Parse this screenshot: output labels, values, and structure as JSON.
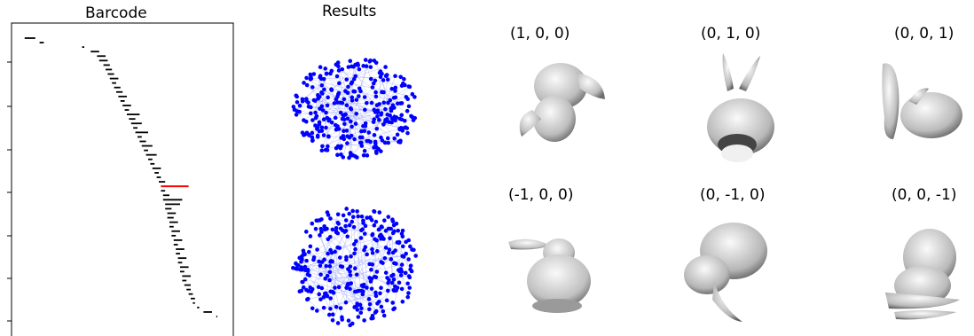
{
  "barcode": {
    "title": "Barcode",
    "bars": [
      {
        "start": 0.02,
        "end": 0.07
      },
      {
        "start": 0.09,
        "end": 0.11
      },
      {
        "start": 0.29,
        "end": 0.3
      },
      {
        "start": 0.33,
        "end": 0.37
      },
      {
        "start": 0.36,
        "end": 0.4
      },
      {
        "start": 0.37,
        "end": 0.41
      },
      {
        "start": 0.39,
        "end": 0.42
      },
      {
        "start": 0.4,
        "end": 0.43
      },
      {
        "start": 0.41,
        "end": 0.44
      },
      {
        "start": 0.42,
        "end": 0.46
      },
      {
        "start": 0.43,
        "end": 0.45
      },
      {
        "start": 0.44,
        "end": 0.47
      },
      {
        "start": 0.45,
        "end": 0.48
      },
      {
        "start": 0.46,
        "end": 0.5
      },
      {
        "start": 0.47,
        "end": 0.49
      },
      {
        "start": 0.48,
        "end": 0.52
      },
      {
        "start": 0.49,
        "end": 0.51
      },
      {
        "start": 0.5,
        "end": 0.56
      },
      {
        "start": 0.51,
        "end": 0.54
      },
      {
        "start": 0.52,
        "end": 0.57
      },
      {
        "start": 0.53,
        "end": 0.55
      },
      {
        "start": 0.54,
        "end": 0.6
      },
      {
        "start": 0.55,
        "end": 0.57
      },
      {
        "start": 0.56,
        "end": 0.59
      },
      {
        "start": 0.57,
        "end": 0.62
      },
      {
        "start": 0.58,
        "end": 0.6
      },
      {
        "start": 0.59,
        "end": 0.64
      },
      {
        "start": 0.6,
        "end": 0.62
      },
      {
        "start": 0.61,
        "end": 0.63
      },
      {
        "start": 0.62,
        "end": 0.66
      },
      {
        "start": 0.63,
        "end": 0.65
      },
      {
        "start": 0.64,
        "end": 0.66
      },
      {
        "start": 0.65,
        "end": 0.68
      },
      {
        "start": 0.66,
        "end": 0.79,
        "highlight": true
      },
      {
        "start": 0.66,
        "end": 0.68
      },
      {
        "start": 0.67,
        "end": 0.7
      },
      {
        "start": 0.67,
        "end": 0.76
      },
      {
        "start": 0.68,
        "end": 0.75
      },
      {
        "start": 0.68,
        "end": 0.71
      },
      {
        "start": 0.69,
        "end": 0.73
      },
      {
        "start": 0.69,
        "end": 0.72
      },
      {
        "start": 0.7,
        "end": 0.74
      },
      {
        "start": 0.7,
        "end": 0.72
      },
      {
        "start": 0.71,
        "end": 0.75
      },
      {
        "start": 0.71,
        "end": 0.73
      },
      {
        "start": 0.72,
        "end": 0.76
      },
      {
        "start": 0.72,
        "end": 0.74
      },
      {
        "start": 0.73,
        "end": 0.77
      },
      {
        "start": 0.73,
        "end": 0.75
      },
      {
        "start": 0.74,
        "end": 0.78
      },
      {
        "start": 0.74,
        "end": 0.76
      },
      {
        "start": 0.75,
        "end": 0.79
      },
      {
        "start": 0.75,
        "end": 0.77
      },
      {
        "start": 0.76,
        "end": 0.8
      },
      {
        "start": 0.76,
        "end": 0.78
      },
      {
        "start": 0.77,
        "end": 0.8
      },
      {
        "start": 0.78,
        "end": 0.8
      },
      {
        "start": 0.79,
        "end": 0.81
      },
      {
        "start": 0.8,
        "end": 0.82
      },
      {
        "start": 0.81,
        "end": 0.82
      },
      {
        "start": 0.83,
        "end": 0.84
      },
      {
        "start": 0.86,
        "end": 0.9
      },
      {
        "start": 0.92,
        "end": 0.925
      }
    ]
  },
  "results": {
    "title": "Results"
  },
  "views": [
    {
      "label": "(1, 0, 0)"
    },
    {
      "label": "(0, 1, 0)"
    },
    {
      "label": "(0, 0, 1)"
    },
    {
      "label": "(-1, 0, 0)"
    },
    {
      "label": "(0, -1, 0)"
    },
    {
      "label": "(0, 0, -1)"
    }
  ],
  "colors": {
    "bar": "#000000",
    "highlight_bar": "#ff0000",
    "points": "#0000ff",
    "edges": "#8f9aff"
  }
}
